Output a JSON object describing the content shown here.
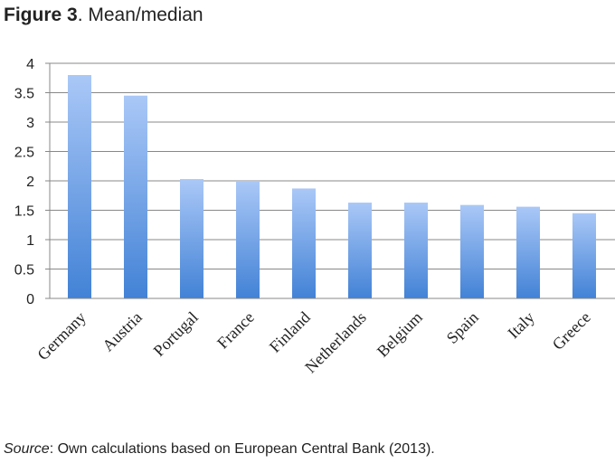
{
  "figure": {
    "label": "Figure 3",
    "title": ". Mean/median"
  },
  "source": {
    "label": "Source",
    "text": ": Own calculations based on European Central Bank (2013)."
  },
  "colors": {
    "bar_top": "#aac8f7",
    "bar_bottom": "#4282d6",
    "gridline": "#888888",
    "axis": "#888888"
  },
  "chart_data": {
    "type": "bar",
    "title": "",
    "xlabel": "",
    "ylabel": "",
    "categories": [
      "Germany",
      "Austria",
      "Portugal",
      "France",
      "Finland",
      "Netherlands",
      "Belgium",
      "Spain",
      "Italy",
      "Greece"
    ],
    "values": [
      3.8,
      3.45,
      2.03,
      2.0,
      1.87,
      1.63,
      1.63,
      1.59,
      1.56,
      1.45
    ],
    "ylim": [
      0,
      4
    ],
    "yticks": [
      "0",
      "0.5",
      "1",
      "1.5",
      "2",
      "2.5",
      "3",
      "3.5",
      "4"
    ],
    "grid": true,
    "legend": "none"
  }
}
